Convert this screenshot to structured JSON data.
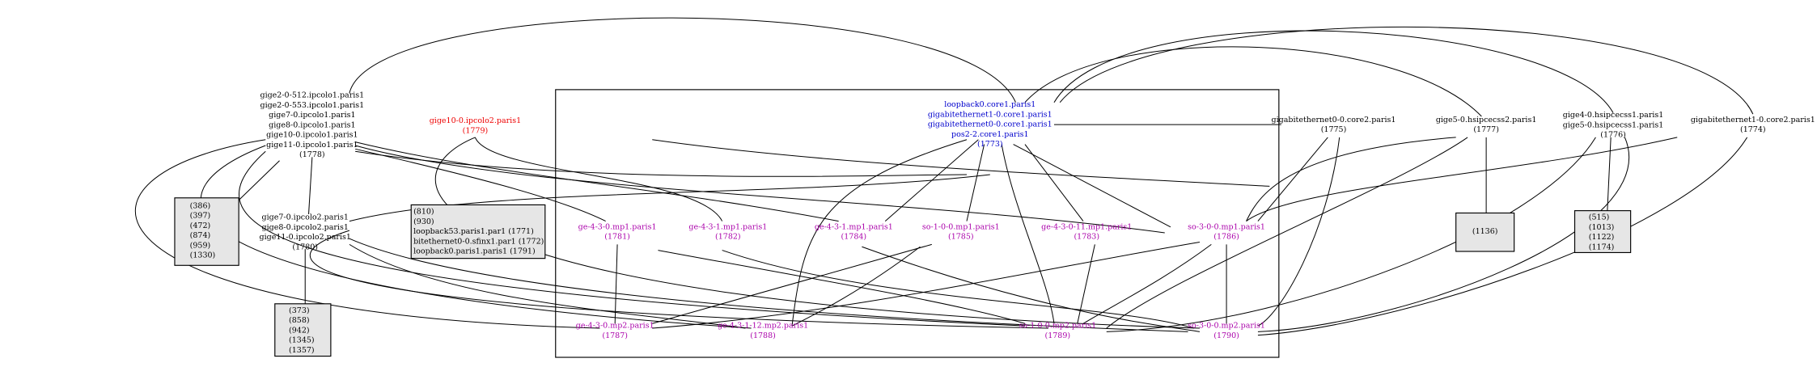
{
  "nodes": [
    {
      "lines": [
        "gige2-0-512.ipcolo1.paris1",
        "gige2-0-553.ipcolo1.paris1",
        "gige7-0.ipcolo1.paris1",
        "gige8-0.ipcolo1.paris1",
        "gige10-0.ipcolo1.paris1",
        "gige11-0.ipcolo1.paris1",
        "(1778)"
      ]
    },
    {
      "lines": [
        "gige10-0.ipcolo2.paris1",
        "(1779)"
      ]
    },
    {
      "lines": [
        "gige7-0.ipcolo2.paris1",
        "gige8-0.ipcolo2.paris1",
        "gige11-0.ipcolo2.paris1",
        "(1780)"
      ]
    },
    {
      "lines": [
        "(386)",
        "(397)",
        "(472)",
        "(874)",
        "(959)",
        "(1330)"
      ]
    },
    {
      "lines": [
        "(373)",
        "(858)",
        "(942)",
        "(1345)",
        "(1357)"
      ]
    },
    {
      "lines": [
        "(810)",
        "(930)",
        "loopback53.paris1.par1 (1771)",
        "bitethernet0-0.sfinx1.par1 (1772)",
        "loopback0.paris1.paris1 (1791)"
      ]
    },
    {
      "lines": [
        "loopback0.core1.paris1",
        "gigabitethernet1-0.core1.paris1",
        "gigabitethernet0-0.core1.paris1",
        "pos2-2.core1.paris1",
        "(1773)"
      ]
    },
    {
      "lines": [
        "gigabitethernet0-0.core2.paris1",
        "(1775)"
      ]
    },
    {
      "lines": [
        "gige5-0.hsipcecss2.paris1",
        "(1777)"
      ]
    },
    {
      "lines": [
        "gige4-0.hsipcecss1.paris1",
        "gige5-0.hsipcecss1.paris1",
        "(1776)"
      ]
    },
    {
      "lines": [
        "gigabitethernet1-0.core2.paris1",
        "(1774)"
      ]
    },
    {
      "lines": [
        "(1136)"
      ]
    },
    {
      "lines": [
        "(515)",
        "(1013)",
        "(1122)",
        "(1174)"
      ]
    },
    {
      "lines": [
        "ge-4-3-0.mp1.paris1",
        "(1781)"
      ]
    },
    {
      "lines": [
        "ge-4-3-1.mp1.paris1",
        "(1782)"
      ]
    },
    {
      "lines": [
        "ge-4-3-1.mp1.paris1",
        "(1784)"
      ]
    },
    {
      "lines": [
        "so-1-0-0.mp1.paris1",
        "(1785)"
      ]
    },
    {
      "lines": [
        "ge-4-3-0-11.mp1.paris1",
        "(1783)"
      ]
    },
    {
      "lines": [
        "so-3-0-0.mp1.paris1",
        "(1786)"
      ]
    },
    {
      "lines": [
        "ge-4-3-0.mp2.paris1",
        "(1787)"
      ]
    },
    {
      "lines": [
        "ge-4-3-1-12.mp2.paris1",
        "(1788)"
      ]
    },
    {
      "lines": [
        "so-1-0-0.mp2.paris1",
        "(1789)"
      ]
    },
    {
      "lines": [
        "so-3-0-0.mp2.paris1",
        "(1790)"
      ]
    }
  ]
}
